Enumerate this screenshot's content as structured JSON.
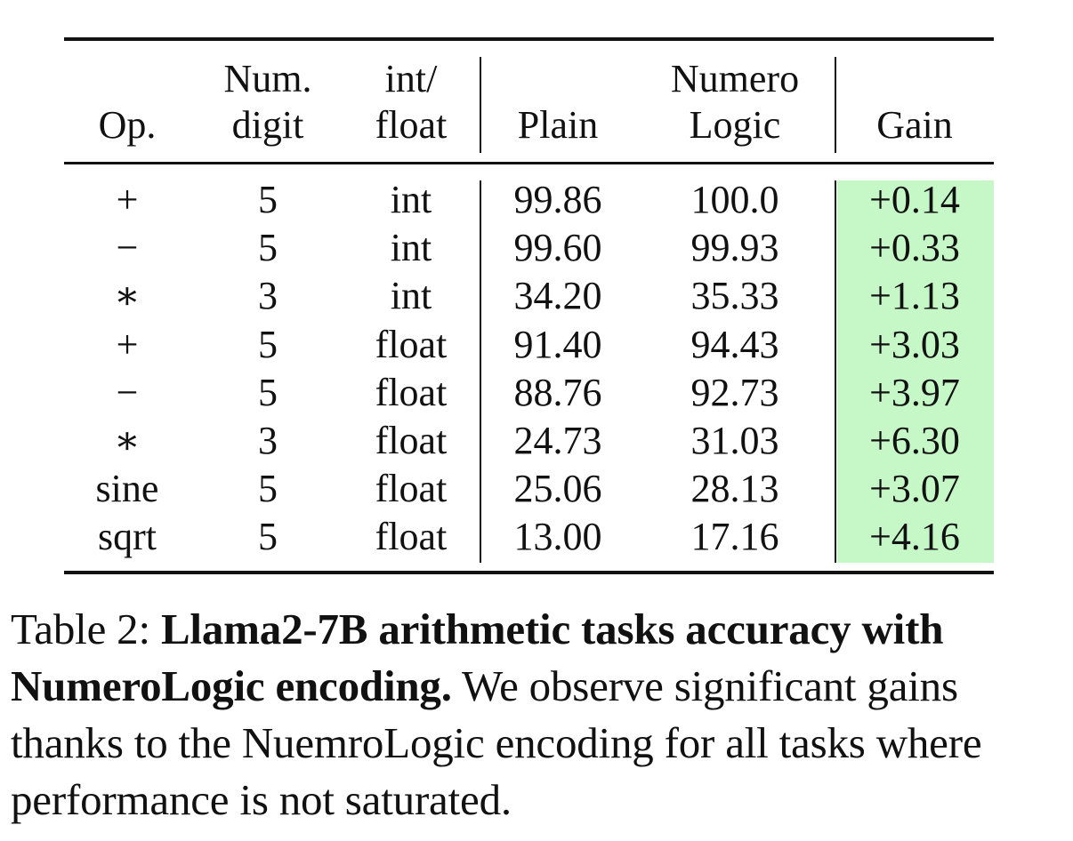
{
  "table": {
    "headers": {
      "op": {
        "line1": "",
        "line2": "Op."
      },
      "num_digit": {
        "line1": "Num.",
        "line2": "digit"
      },
      "int_float": {
        "line1": "int/",
        "line2": "float"
      },
      "plain": {
        "line1": "",
        "line2": "Plain"
      },
      "numero_logic": {
        "line1": "Numero",
        "line2": "Logic"
      },
      "gain": {
        "line1": "",
        "line2": "Gain"
      }
    },
    "rows": [
      {
        "op": "+",
        "num_digit": "5",
        "int_float": "int",
        "plain": "99.86",
        "numero_logic": "100.0",
        "gain": "+0.14"
      },
      {
        "op": "−",
        "num_digit": "5",
        "int_float": "int",
        "plain": "99.60",
        "numero_logic": "99.93",
        "gain": "+0.33"
      },
      {
        "op": "∗",
        "num_digit": "3",
        "int_float": "int",
        "plain": "34.20",
        "numero_logic": "35.33",
        "gain": "+1.13"
      },
      {
        "op": "+",
        "num_digit": "5",
        "int_float": "float",
        "plain": "91.40",
        "numero_logic": "94.43",
        "gain": "+3.03"
      },
      {
        "op": "−",
        "num_digit": "5",
        "int_float": "float",
        "plain": "88.76",
        "numero_logic": "92.73",
        "gain": "+3.97"
      },
      {
        "op": "∗",
        "num_digit": "3",
        "int_float": "float",
        "plain": "24.73",
        "numero_logic": "31.03",
        "gain": "+6.30"
      },
      {
        "op": "sine",
        "num_digit": "5",
        "int_float": "float",
        "plain": "25.06",
        "numero_logic": "28.13",
        "gain": "+3.07"
      },
      {
        "op": "sqrt",
        "num_digit": "5",
        "int_float": "float",
        "plain": "13.00",
        "numero_logic": "17.16",
        "gain": "+4.16"
      }
    ],
    "gain_highlight_color": "#c6f7c6"
  },
  "caption": {
    "label": "Table 2:",
    "bold_title": "Llama2-7B arithmetic tasks accuracy with NumeroLogic encoding.",
    "body": "We observe significant gains thanks to the NuemroLogic encoding for all tasks where performance is not saturated."
  }
}
